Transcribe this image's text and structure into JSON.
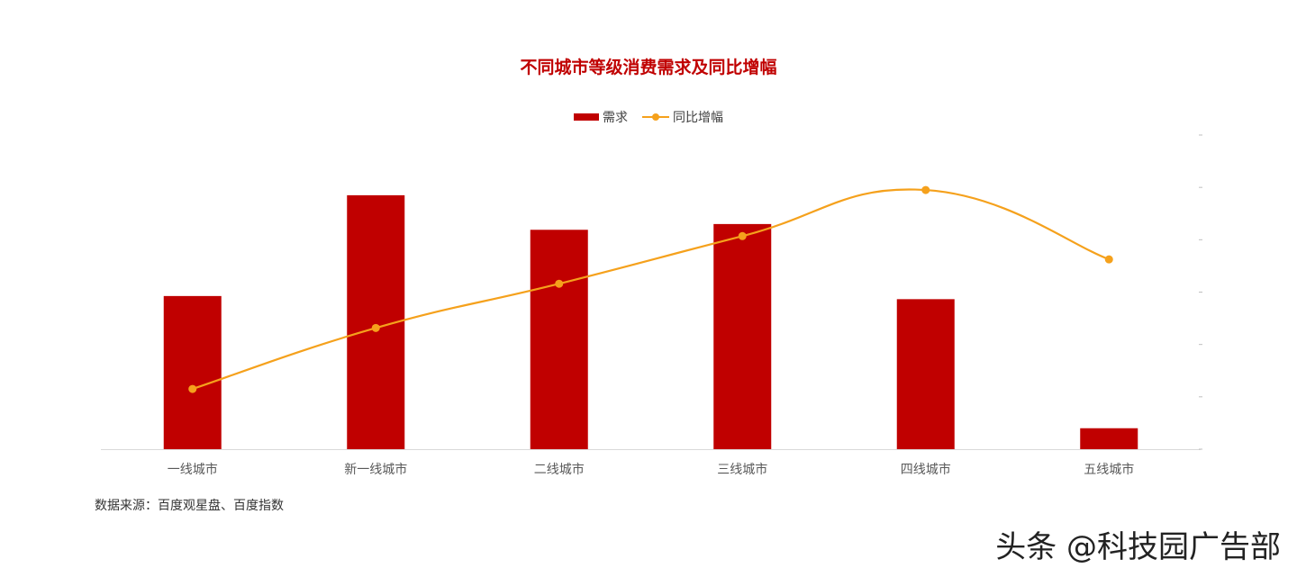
{
  "chart_data": {
    "type": "bar",
    "title": "不同城市等级消费需求及同比增幅",
    "categories": [
      "一线城市",
      "新一线城市",
      "二线城市",
      "三线城市",
      "四线城市",
      "五线城市"
    ],
    "series": [
      {
        "name": "需求",
        "type": "bar",
        "values": [
          58.5,
          97.0,
          83.8,
          86.0,
          57.3,
          8.0
        ]
      },
      {
        "name": "同比增幅",
        "type": "line",
        "smooth": true,
        "values": [
          23.0,
          46.3,
          63.2,
          81.4,
          99.0,
          72.5
        ]
      }
    ],
    "ylim": [
      0,
      120
    ],
    "xlabel": "",
    "ylabel": "",
    "grid": false,
    "legend": "top-center",
    "colors": {
      "bar": "#c00000",
      "line": "#f5a11c",
      "title": "#c00000"
    }
  },
  "legend": {
    "bar_label": "需求",
    "line_label": "同比增幅"
  },
  "footer": {
    "source": "数据来源：百度观星盘、百度指数"
  },
  "watermark": "头条 @科技园广告部"
}
